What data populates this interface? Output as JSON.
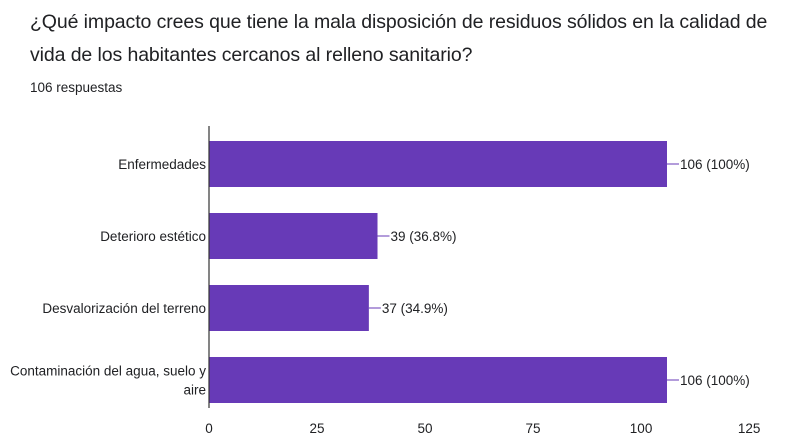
{
  "question": {
    "title": "¿Qué impacto crees que tiene la mala disposición de residuos sólidos en la calidad de vida de los habitantes cercanos al relleno sanitario?",
    "responses": "106 respuestas"
  },
  "colors": {
    "bar": "#673ab7",
    "axis": "#333333",
    "label_line": "#673ab7",
    "text": "#202124"
  },
  "chart_data": {
    "type": "bar",
    "orientation": "horizontal",
    "categories": [
      [
        "Enfermedades"
      ],
      [
        "Deterioro estético"
      ],
      [
        "Desvalorización del terreno"
      ],
      [
        "Contaminación del agua, suelo y",
        "aire"
      ]
    ],
    "values": [
      106,
      39,
      37,
      106
    ],
    "data_labels": [
      "106 (100%)",
      "39 (36.8%)",
      "37 (34.9%)",
      "106 (100%)"
    ],
    "xlim": [
      0,
      125
    ],
    "xticks": [
      0,
      25,
      50,
      75,
      100,
      125
    ],
    "grid": false,
    "legend": "none",
    "xlabel": "",
    "ylabel": ""
  }
}
